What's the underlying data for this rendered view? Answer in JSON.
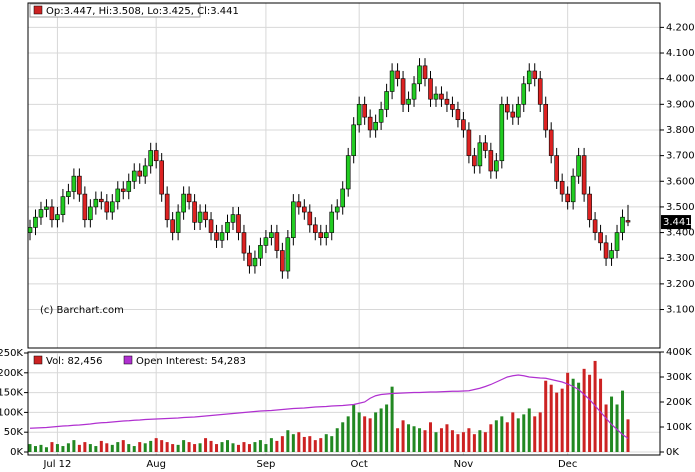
{
  "chart_data": [
    {
      "type": "candlestick",
      "legend": "Op:3.447, Hi:3.508, Lo:3.425, Cl:3.441",
      "watermark": "(c) Barchart.com",
      "up_color": "#22cc22",
      "down_color": "#dd2222",
      "legend_color": "#cc2222",
      "open": [
        3.4,
        3.42,
        3.46,
        3.49,
        3.5,
        3.45,
        3.47,
        3.54,
        3.56,
        3.62,
        3.55,
        3.45,
        3.5,
        3.53,
        3.52,
        3.48,
        3.52,
        3.57,
        3.56,
        3.6,
        3.64,
        3.62,
        3.66,
        3.72,
        3.68,
        3.55,
        3.45,
        3.4,
        3.48,
        3.55,
        3.52,
        3.44,
        3.48,
        3.45,
        3.4,
        3.37,
        3.4,
        3.44,
        3.47,
        3.4,
        3.32,
        3.27,
        3.3,
        3.35,
        3.38,
        3.4,
        3.33,
        3.25,
        3.38,
        3.52,
        3.5,
        3.48,
        3.43,
        3.4,
        3.38,
        3.4,
        3.48,
        3.5,
        3.57,
        3.7,
        3.82,
        3.9,
        3.85,
        3.8,
        3.83,
        3.88,
        3.95,
        4.03,
        4.0,
        3.9,
        3.92,
        3.98,
        4.05,
        4.0,
        3.92,
        3.94,
        3.92,
        3.9,
        3.88,
        3.84,
        3.8,
        3.7,
        3.66,
        3.75,
        3.72,
        3.64,
        3.68,
        3.9,
        3.87,
        3.85,
        3.9,
        3.98,
        4.03,
        4.0,
        3.9,
        3.8,
        3.7,
        3.6,
        3.55,
        3.52,
        3.62,
        3.7,
        3.55,
        3.45,
        3.4,
        3.36,
        3.3,
        3.33,
        3.4,
        3.447
      ],
      "high": [
        3.45,
        3.49,
        3.52,
        3.53,
        3.53,
        3.5,
        3.57,
        3.59,
        3.65,
        3.65,
        3.58,
        3.53,
        3.56,
        3.56,
        3.55,
        3.55,
        3.6,
        3.6,
        3.63,
        3.67,
        3.67,
        3.69,
        3.75,
        3.75,
        3.71,
        3.58,
        3.48,
        3.51,
        3.58,
        3.58,
        3.55,
        3.51,
        3.51,
        3.48,
        3.43,
        3.43,
        3.47,
        3.5,
        3.5,
        3.43,
        3.35,
        3.33,
        3.38,
        3.41,
        3.43,
        3.43,
        3.36,
        3.41,
        3.55,
        3.55,
        3.53,
        3.51,
        3.46,
        3.43,
        3.43,
        3.51,
        3.53,
        3.6,
        3.73,
        3.85,
        3.93,
        3.93,
        3.88,
        3.86,
        3.91,
        3.98,
        4.06,
        4.06,
        4.03,
        3.95,
        4.01,
        4.08,
        4.08,
        4.03,
        3.97,
        3.97,
        3.95,
        3.93,
        3.91,
        3.87,
        3.83,
        3.73,
        3.78,
        3.78,
        3.75,
        3.71,
        3.93,
        3.93,
        3.9,
        3.93,
        4.01,
        4.06,
        4.06,
        4.03,
        3.93,
        3.83,
        3.73,
        3.63,
        3.58,
        3.65,
        3.73,
        3.73,
        3.58,
        3.48,
        3.43,
        3.39,
        3.36,
        3.43,
        3.49,
        3.508
      ],
      "low": [
        3.37,
        3.39,
        3.43,
        3.46,
        3.42,
        3.42,
        3.44,
        3.51,
        3.53,
        3.52,
        3.42,
        3.42,
        3.47,
        3.49,
        3.45,
        3.45,
        3.49,
        3.53,
        3.53,
        3.57,
        3.59,
        3.59,
        3.63,
        3.65,
        3.52,
        3.42,
        3.37,
        3.37,
        3.45,
        3.49,
        3.41,
        3.41,
        3.42,
        3.37,
        3.34,
        3.34,
        3.37,
        3.41,
        3.37,
        3.29,
        3.24,
        3.24,
        3.27,
        3.32,
        3.35,
        3.3,
        3.22,
        3.22,
        3.35,
        3.47,
        3.45,
        3.4,
        3.37,
        3.35,
        3.35,
        3.37,
        3.45,
        3.47,
        3.54,
        3.67,
        3.79,
        3.82,
        3.77,
        3.77,
        3.8,
        3.85,
        3.92,
        3.97,
        3.87,
        3.87,
        3.89,
        3.95,
        3.97,
        3.89,
        3.89,
        3.89,
        3.87,
        3.85,
        3.81,
        3.77,
        3.67,
        3.63,
        3.63,
        3.69,
        3.61,
        3.61,
        3.65,
        3.84,
        3.82,
        3.82,
        3.87,
        3.95,
        3.97,
        3.87,
        3.77,
        3.67,
        3.57,
        3.52,
        3.49,
        3.49,
        3.59,
        3.52,
        3.42,
        3.37,
        3.33,
        3.27,
        3.27,
        3.3,
        3.37,
        3.425
      ],
      "close": [
        3.42,
        3.46,
        3.49,
        3.5,
        3.45,
        3.47,
        3.54,
        3.56,
        3.62,
        3.55,
        3.45,
        3.5,
        3.53,
        3.52,
        3.48,
        3.52,
        3.57,
        3.56,
        3.6,
        3.64,
        3.62,
        3.66,
        3.72,
        3.68,
        3.55,
        3.45,
        3.4,
        3.48,
        3.55,
        3.52,
        3.44,
        3.48,
        3.45,
        3.4,
        3.37,
        3.4,
        3.44,
        3.47,
        3.4,
        3.32,
        3.27,
        3.3,
        3.35,
        3.38,
        3.4,
        3.33,
        3.25,
        3.38,
        3.52,
        3.5,
        3.48,
        3.43,
        3.4,
        3.38,
        3.4,
        3.48,
        3.5,
        3.57,
        3.7,
        3.82,
        3.9,
        3.85,
        3.8,
        3.83,
        3.88,
        3.95,
        4.03,
        4.0,
        3.9,
        3.92,
        3.98,
        4.05,
        4.0,
        3.92,
        3.94,
        3.92,
        3.9,
        3.88,
        3.84,
        3.8,
        3.7,
        3.66,
        3.75,
        3.72,
        3.64,
        3.68,
        3.9,
        3.87,
        3.85,
        3.9,
        3.98,
        4.03,
        4.0,
        3.9,
        3.8,
        3.7,
        3.6,
        3.55,
        3.52,
        3.62,
        3.7,
        3.55,
        3.45,
        3.4,
        3.36,
        3.3,
        3.33,
        3.4,
        3.46,
        3.441
      ],
      "ylim": [
        2.95,
        4.295
      ],
      "yticks": [
        {
          "value": 3.1,
          "label": "3.100"
        },
        {
          "value": 3.2,
          "label": "3.200"
        },
        {
          "value": 3.3,
          "label": "3.300"
        },
        {
          "value": 3.4,
          "label": "3.400"
        },
        {
          "value": 3.5,
          "label": "3.500"
        },
        {
          "value": 3.6,
          "label": "3.600"
        },
        {
          "value": 3.7,
          "label": "3.700"
        },
        {
          "value": 3.8,
          "label": "3.800"
        },
        {
          "value": 3.9,
          "label": "3.900"
        },
        {
          "value": 4.0,
          "label": "4.000"
        },
        {
          "value": 4.1,
          "label": "4.100"
        },
        {
          "value": 4.2,
          "label": "4.200"
        }
      ],
      "grid": true
    },
    {
      "type": "bar",
      "categories": [
        null,
        null,
        null,
        null,
        null,
        "Jul 12",
        null,
        null,
        null,
        null,
        null,
        null,
        null,
        null,
        null,
        null,
        null,
        null,
        null,
        null,
        null,
        null,
        null,
        "Aug",
        null,
        null,
        null,
        null,
        null,
        null,
        null,
        null,
        null,
        null,
        null,
        null,
        null,
        null,
        null,
        null,
        null,
        null,
        null,
        "Sep",
        null,
        null,
        null,
        null,
        null,
        null,
        null,
        null,
        null,
        null,
        null,
        null,
        null,
        null,
        null,
        null,
        "Oct",
        null,
        null,
        null,
        null,
        null,
        null,
        null,
        null,
        null,
        null,
        null,
        null,
        null,
        null,
        null,
        null,
        null,
        null,
        "Nov",
        null,
        null,
        null,
        null,
        null,
        null,
        null,
        null,
        null,
        null,
        null,
        null,
        null,
        null,
        null,
        null,
        null,
        null,
        "Dec",
        null,
        null,
        null,
        null,
        null,
        null,
        null,
        null,
        null,
        null,
        null
      ],
      "series": [
        {
          "name": "Vol: 82,456",
          "color": "#cc2222",
          "values": [
            20000,
            15000,
            18000,
            12000,
            25000,
            20000,
            15000,
            22000,
            30000,
            18000,
            25000,
            20000,
            15000,
            28000,
            22000,
            18000,
            25000,
            30000,
            20000,
            15000,
            25000,
            22000,
            28000,
            35000,
            30000,
            25000,
            20000,
            18000,
            30000,
            25000,
            20000,
            22000,
            35000,
            28000,
            20000,
            25000,
            30000,
            22000,
            18000,
            25000,
            20000,
            25000,
            30000,
            20000,
            35000,
            28000,
            40000,
            55000,
            45000,
            50000,
            38000,
            40000,
            30000,
            35000,
            45000,
            40000,
            60000,
            75000,
            90000,
            120000,
            100000,
            90000,
            85000,
            100000,
            110000,
            120000,
            165000,
            60000,
            80000,
            70000,
            65000,
            60000,
            55000,
            75000,
            50000,
            60000,
            70000,
            55000,
            45000,
            50000,
            60000,
            45000,
            55000,
            50000,
            70000,
            80000,
            90000,
            75000,
            100000,
            85000,
            95000,
            110000,
            90000,
            100000,
            180000,
            170000,
            150000,
            160000,
            200000,
            185000,
            175000,
            210000,
            195000,
            230000,
            185000,
            120000,
            140000,
            120000,
            155000,
            82456
          ]
        },
        {
          "name": "Open Interest: 54,283",
          "color": "#b030d0",
          "axis": "y2",
          "values": [
            95000,
            96000,
            97000,
            98000,
            100000,
            102000,
            104000,
            105000,
            107000,
            108000,
            110000,
            112000,
            115000,
            117000,
            118000,
            120000,
            122000,
            124000,
            125000,
            127000,
            128000,
            130000,
            131000,
            132000,
            133000,
            134000,
            135000,
            136000,
            138000,
            139000,
            140000,
            142000,
            144000,
            146000,
            148000,
            150000,
            152000,
            154000,
            156000,
            158000,
            160000,
            162000,
            164000,
            165000,
            166000,
            168000,
            170000,
            172000,
            174000,
            175000,
            176000,
            178000,
            180000,
            181000,
            182000,
            184000,
            185000,
            186000,
            188000,
            190000,
            195000,
            200000,
            215000,
            225000,
            230000,
            232000,
            234000,
            235000,
            236000,
            237000,
            238000,
            238000,
            239000,
            240000,
            240000,
            241000,
            242000,
            243000,
            243000,
            244000,
            245000,
            250000,
            255000,
            262000,
            270000,
            280000,
            290000,
            300000,
            305000,
            308000,
            305000,
            300000,
            298000,
            296000,
            295000,
            290000,
            285000,
            280000,
            272000,
            262000,
            250000,
            230000,
            210000,
            185000,
            160000,
            135000,
            110000,
            90000,
            70000,
            54283
          ]
        }
      ],
      "ylim": [
        0,
        250000
      ],
      "yticks": [
        {
          "value": 0,
          "label": "0K"
        },
        {
          "value": 50000,
          "label": "50K"
        },
        {
          "value": 100000,
          "label": "100K"
        },
        {
          "value": 150000,
          "label": "150K"
        },
        {
          "value": 200000,
          "label": "200K"
        },
        {
          "value": 250000,
          "label": "250K"
        }
      ],
      "y2lim": [
        0,
        400000
      ],
      "y2ticks": [
        {
          "value": 0,
          "label": "0K"
        },
        {
          "value": 100000,
          "label": "100K"
        },
        {
          "value": 200000,
          "label": "200K"
        },
        {
          "value": 300000,
          "label": "300K"
        },
        {
          "value": 400000,
          "label": "400K"
        }
      ],
      "grid": true
    }
  ]
}
